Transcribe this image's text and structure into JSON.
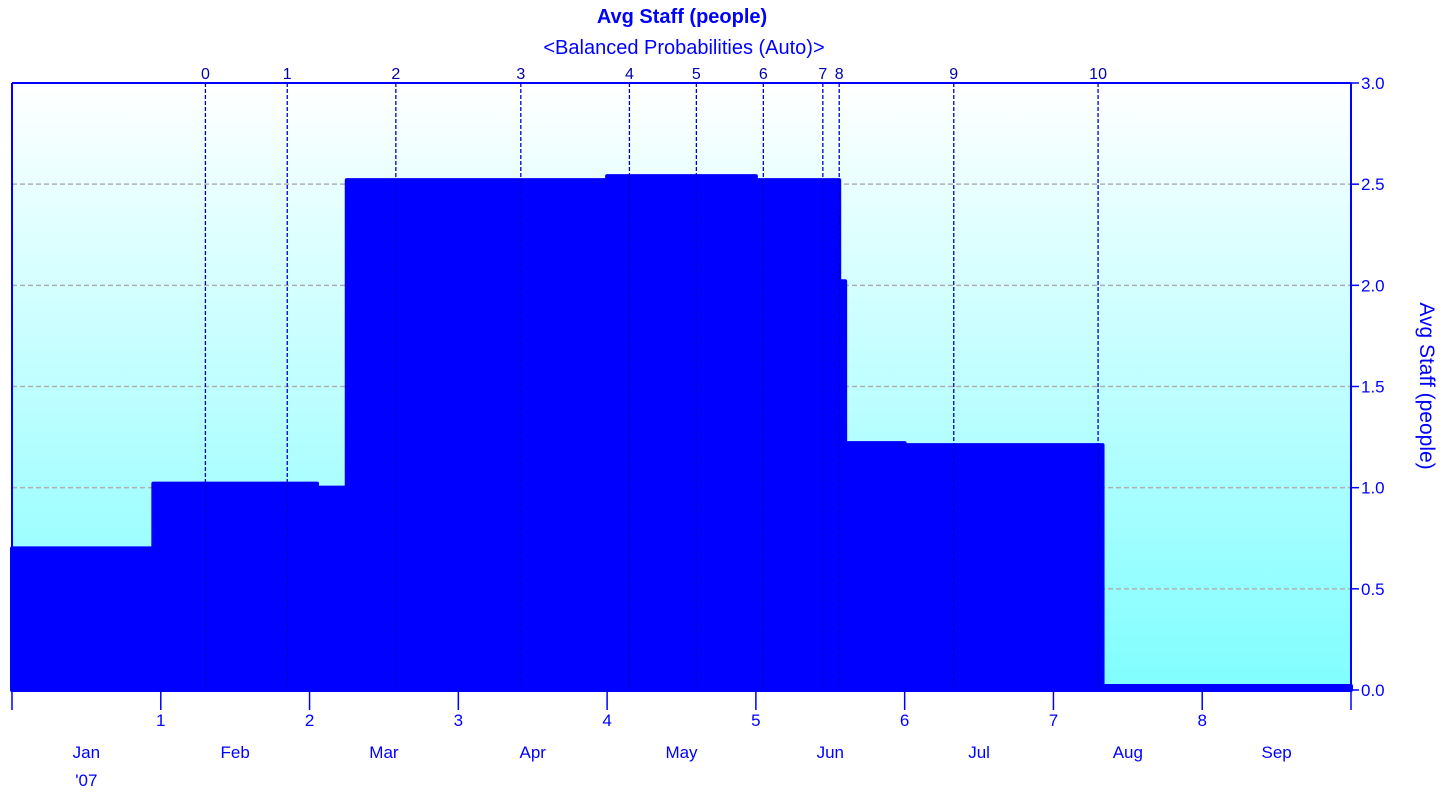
{
  "chart_data": {
    "type": "area",
    "title": "Avg Staff (people)",
    "subtitle": "<Balanced Probabilities (Auto)>",
    "ylabel": "Avg Staff (people)",
    "ylim": [
      0,
      3
    ],
    "yticks": [
      "0.0",
      "0.5",
      "1.0",
      "1.5",
      "2.0",
      "2.5",
      "3.0"
    ],
    "x_month_ticks": [
      "1",
      "2",
      "3",
      "4",
      "5",
      "6",
      "7",
      "8"
    ],
    "x_month_labels": [
      "Jan",
      "Feb",
      "Mar",
      "Apr",
      "May",
      "Jun",
      "Jul",
      "Aug",
      "Sep"
    ],
    "x_year_label": "'07",
    "grid": true,
    "milestones": [
      {
        "label": "0",
        "x": 1.3
      },
      {
        "label": "1",
        "x": 1.85
      },
      {
        "label": "2",
        "x": 2.58
      },
      {
        "label": "3",
        "x": 3.42
      },
      {
        "label": "4",
        "x": 4.15
      },
      {
        "label": "5",
        "x": 4.6
      },
      {
        "label": "6",
        "x": 5.05
      },
      {
        "label": "7",
        "x": 5.45
      },
      {
        "label": "8",
        "x": 5.56
      },
      {
        "label": "9",
        "x": 6.33
      },
      {
        "label": "10",
        "x": 7.3
      }
    ],
    "series": [
      {
        "steps": [
          {
            "x0": 0.0,
            "x1": 0.95,
            "y": 0.7
          },
          {
            "x0": 0.95,
            "x1": 2.05,
            "y": 1.02
          },
          {
            "x0": 2.05,
            "x1": 2.25,
            "y": 1.0
          },
          {
            "x0": 2.25,
            "x1": 4.0,
            "y": 2.52
          },
          {
            "x0": 4.0,
            "x1": 5.0,
            "y": 2.54
          },
          {
            "x0": 5.0,
            "x1": 5.56,
            "y": 2.52
          },
          {
            "x0": 5.56,
            "x1": 5.6,
            "y": 2.02
          },
          {
            "x0": 5.6,
            "x1": 6.0,
            "y": 1.22
          },
          {
            "x0": 6.0,
            "x1": 7.33,
            "y": 1.21
          },
          {
            "x0": 7.33,
            "x1": 9.0,
            "y": 0.02
          }
        ]
      }
    ],
    "colors": {
      "series_fill": "#0000ff",
      "axis": "#0000ff",
      "bg_top": "#ffffff",
      "bg_bottom": "#7ffeff",
      "grid": "#b0b0b0"
    }
  }
}
